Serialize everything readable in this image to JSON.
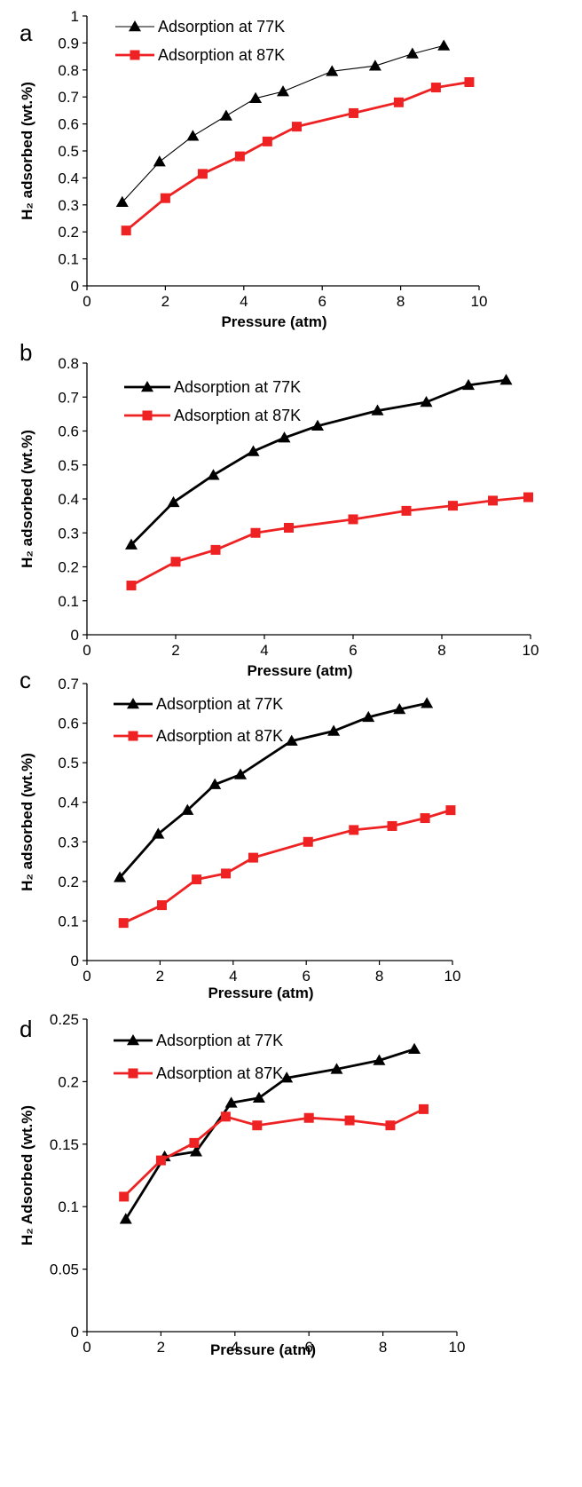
{
  "chart_data": [
    {
      "panel": "a",
      "type": "line",
      "xlabel": "Pressure (atm)",
      "ylabel": "H₂ adsorbed (wt.%)",
      "xlim": [
        0,
        10
      ],
      "ylim": [
        0,
        1
      ],
      "xticks": [
        0,
        2,
        4,
        6,
        8,
        10
      ],
      "yticks": [
        0,
        0.1,
        0.2,
        0.3,
        0.4,
        0.5,
        0.6,
        0.7,
        0.8,
        0.9,
        1
      ],
      "ytick_labels": [
        "0",
        "0.1",
        "0.2",
        "0.3",
        "0.4",
        "0.5",
        "0.6",
        "0.7",
        "0.8",
        "0.9",
        "1"
      ],
      "grid": false,
      "legend": "top-left",
      "series": [
        {
          "name": "Adsorption at 77K",
          "marker": "triangle",
          "color": "#000000",
          "line": "thin",
          "x": [
            0.9,
            1.85,
            2.7,
            3.55,
            4.3,
            5.0,
            6.25,
            7.35,
            8.3,
            9.1
          ],
          "y": [
            0.31,
            0.46,
            0.555,
            0.63,
            0.695,
            0.72,
            0.795,
            0.815,
            0.86,
            0.89
          ]
        },
        {
          "name": "Adsorption at 87K",
          "marker": "square",
          "color": "#ee2222",
          "line": "thick",
          "x": [
            1.0,
            2.0,
            2.95,
            3.9,
            4.6,
            5.35,
            6.8,
            7.95,
            8.9,
            9.75
          ],
          "y": [
            0.205,
            0.325,
            0.415,
            0.48,
            0.535,
            0.59,
            0.64,
            0.68,
            0.735,
            0.755
          ]
        }
      ]
    },
    {
      "panel": "b",
      "type": "line",
      "xlabel": "Pressure (atm)",
      "ylabel": "H₂ adsorbed (wt.%)",
      "xlim": [
        0,
        10
      ],
      "ylim": [
        0,
        0.8
      ],
      "xticks": [
        0,
        2,
        4,
        6,
        8,
        10
      ],
      "yticks": [
        0,
        0.1,
        0.2,
        0.3,
        0.4,
        0.5,
        0.6,
        0.7,
        0.8
      ],
      "ytick_labels": [
        "0",
        "0.1",
        "0.2",
        "0.3",
        "0.4",
        "0.5",
        "0.6",
        "0.7",
        "0.8"
      ],
      "grid": false,
      "legend": "top-left",
      "series": [
        {
          "name": "Adsorption at 77K",
          "marker": "triangle",
          "color": "#000000",
          "line": "thick",
          "x": [
            1.0,
            1.95,
            2.85,
            3.75,
            4.45,
            5.2,
            6.55,
            7.65,
            8.6,
            9.45
          ],
          "y": [
            0.265,
            0.39,
            0.47,
            0.54,
            0.58,
            0.615,
            0.66,
            0.685,
            0.735,
            0.75
          ]
        },
        {
          "name": "Adsorption at 87K",
          "marker": "square",
          "color": "#ee2222",
          "line": "thick",
          "x": [
            1.0,
            2.0,
            2.9,
            3.8,
            4.55,
            6.0,
            7.2,
            8.25,
            9.15,
            9.95
          ],
          "y": [
            0.145,
            0.215,
            0.25,
            0.3,
            0.315,
            0.34,
            0.365,
            0.38,
            0.395,
            0.405
          ]
        }
      ]
    },
    {
      "panel": "c",
      "type": "line",
      "xlabel": "Pressure (atm)",
      "ylabel": "H₂ adsorbed (wt.%)",
      "xlim": [
        0,
        10
      ],
      "ylim": [
        0,
        0.7
      ],
      "xticks": [
        0,
        2,
        4,
        6,
        8,
        10
      ],
      "yticks": [
        0,
        0.1,
        0.2,
        0.3,
        0.4,
        0.5,
        0.6,
        0.7
      ],
      "ytick_labels": [
        "0",
        "0.1",
        "0.2",
        "0.3",
        "0.4",
        "0.5",
        "0.6",
        "0.7"
      ],
      "grid": false,
      "legend": "top-left",
      "series": [
        {
          "name": "Adsorption at 77K",
          "marker": "triangle",
          "color": "#000000",
          "line": "thick",
          "x": [
            0.9,
            1.95,
            2.75,
            3.5,
            4.2,
            5.6,
            6.75,
            7.7,
            8.55,
            9.3
          ],
          "y": [
            0.21,
            0.32,
            0.38,
            0.445,
            0.47,
            0.555,
            0.58,
            0.615,
            0.635,
            0.65
          ]
        },
        {
          "name": "Adsorption at 87K",
          "marker": "square",
          "color": "#ee2222",
          "line": "thick",
          "x": [
            1.0,
            2.05,
            3.0,
            3.8,
            4.55,
            6.05,
            7.3,
            8.35,
            9.25,
            9.95
          ],
          "y": [
            0.095,
            0.14,
            0.205,
            0.22,
            0.26,
            0.3,
            0.33,
            0.34,
            0.36,
            0.38
          ]
        }
      ]
    },
    {
      "panel": "d",
      "type": "line",
      "xlabel": "Pressure (atm)",
      "ylabel": "H₂ Adsorbed (wt.%)",
      "xlim": [
        0,
        10
      ],
      "ylim": [
        0,
        0.25
      ],
      "xticks": [
        0,
        2,
        4,
        6,
        8,
        10
      ],
      "yticks": [
        0,
        0.05,
        0.1,
        0.15,
        0.2,
        0.25
      ],
      "ytick_labels": [
        "0",
        "0.05",
        "0.1",
        "0.15",
        "0.2",
        "0.25"
      ],
      "grid": false,
      "legend": "top-left",
      "series": [
        {
          "name": "Adsorption at 77K",
          "marker": "triangle",
          "color": "#000000",
          "line": "thick",
          "x": [
            1.05,
            2.1,
            2.95,
            3.9,
            4.65,
            5.4,
            6.75,
            7.9,
            8.85
          ],
          "y": [
            0.09,
            0.14,
            0.144,
            0.183,
            0.187,
            0.203,
            0.21,
            0.217,
            0.226
          ]
        },
        {
          "name": "Adsorption at 87K",
          "marker": "square",
          "color": "#ee2222",
          "line": "thick",
          "x": [
            1.0,
            2.0,
            2.9,
            3.75,
            4.6,
            6.0,
            7.1,
            8.2,
            9.1
          ],
          "y": [
            0.108,
            0.137,
            0.151,
            0.172,
            0.165,
            0.171,
            0.169,
            0.165,
            0.178
          ]
        }
      ]
    }
  ]
}
